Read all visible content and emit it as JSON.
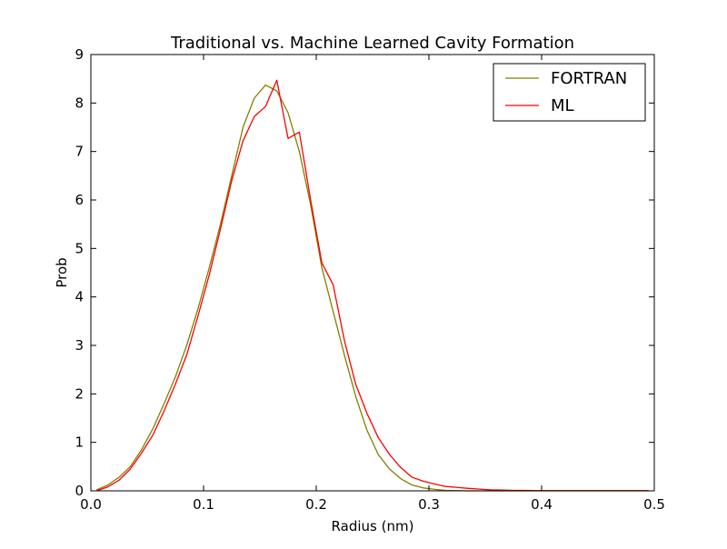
{
  "chart_data": {
    "type": "line",
    "title": "Traditional vs. Machine Learned Cavity Formation",
    "xlabel": "Radius (nm)",
    "ylabel": "Prob",
    "xlim": [
      0,
      0.5
    ],
    "ylim": [
      0,
      9
    ],
    "x_ticks": [
      0.0,
      0.1,
      0.2,
      0.3,
      0.4,
      0.5
    ],
    "x_tick_labels": [
      "0.0",
      "0.1",
      "0.2",
      "0.3",
      "0.4",
      "0.5"
    ],
    "y_ticks": [
      0,
      1,
      2,
      3,
      4,
      5,
      6,
      7,
      8,
      9
    ],
    "y_tick_labels": [
      "0",
      "1",
      "2",
      "3",
      "4",
      "5",
      "6",
      "7",
      "8",
      "9"
    ],
    "grid": false,
    "legend_position": "top-right",
    "series": [
      {
        "name": "FORTRAN",
        "color": "#808000",
        "x": [
          0.005,
          0.015,
          0.025,
          0.035,
          0.045,
          0.055,
          0.065,
          0.075,
          0.085,
          0.095,
          0.105,
          0.115,
          0.125,
          0.135,
          0.145,
          0.155,
          0.165,
          0.175,
          0.185,
          0.195,
          0.205,
          0.215,
          0.225,
          0.235,
          0.245,
          0.255,
          0.265,
          0.275,
          0.285,
          0.295,
          0.305,
          0.315,
          0.325,
          0.335,
          0.345,
          0.355,
          0.365,
          0.375,
          0.385,
          0.395,
          0.405,
          0.415,
          0.425,
          0.435,
          0.445,
          0.455,
          0.465,
          0.475,
          0.485,
          0.495
        ],
        "values": [
          0.02,
          0.12,
          0.28,
          0.5,
          0.85,
          1.28,
          1.8,
          2.35,
          3.0,
          3.75,
          4.6,
          5.5,
          6.5,
          7.5,
          8.1,
          8.37,
          8.25,
          7.8,
          7.0,
          5.9,
          4.6,
          3.7,
          2.8,
          1.95,
          1.25,
          0.75,
          0.45,
          0.25,
          0.12,
          0.06,
          0.03,
          0.01,
          0.005,
          0.0,
          0.0,
          0.0,
          0.0,
          0.0,
          0.0,
          0.0,
          0.0,
          0.0,
          0.0,
          0.0,
          0.0,
          0.0,
          0.0,
          0.0,
          0.0,
          0.0
        ]
      },
      {
        "name": "ML",
        "color": "#ff0000",
        "x": [
          0.005,
          0.015,
          0.025,
          0.035,
          0.045,
          0.055,
          0.065,
          0.075,
          0.085,
          0.095,
          0.105,
          0.115,
          0.125,
          0.135,
          0.145,
          0.155,
          0.165,
          0.175,
          0.185,
          0.195,
          0.205,
          0.215,
          0.225,
          0.235,
          0.245,
          0.255,
          0.265,
          0.275,
          0.285,
          0.295,
          0.305,
          0.315,
          0.325,
          0.335,
          0.345,
          0.355,
          0.365,
          0.375,
          0.385,
          0.395,
          0.405,
          0.415,
          0.425,
          0.435,
          0.445,
          0.455,
          0.465,
          0.475,
          0.485,
          0.495
        ],
        "values": [
          0.0,
          0.08,
          0.22,
          0.45,
          0.78,
          1.15,
          1.65,
          2.2,
          2.8,
          3.6,
          4.45,
          5.4,
          6.4,
          7.22,
          7.72,
          7.93,
          8.47,
          7.27,
          7.4,
          6.0,
          4.7,
          4.25,
          3.1,
          2.2,
          1.6,
          1.1,
          0.75,
          0.48,
          0.28,
          0.2,
          0.14,
          0.09,
          0.07,
          0.05,
          0.035,
          0.02,
          0.015,
          0.01,
          0.008,
          0.005,
          0.005,
          0.005,
          0.005,
          0.005,
          0.005,
          0.005,
          0.005,
          0.005,
          0.005,
          0.005
        ]
      }
    ]
  }
}
